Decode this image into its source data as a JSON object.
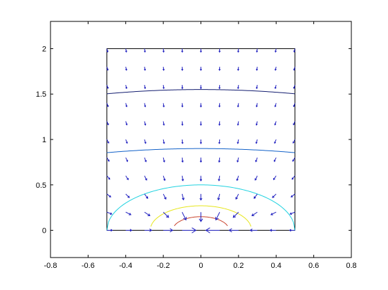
{
  "chart_data": {
    "type": "contour-quiver",
    "title": "",
    "xlabel": "",
    "ylabel": "",
    "xlim": [
      -0.8,
      0.8
    ],
    "ylim": [
      -0.3,
      2.3
    ],
    "xticks": [
      -0.8,
      -0.6,
      -0.4,
      -0.2,
      0,
      0.2,
      0.4,
      0.6,
      0.8
    ],
    "yticks": [
      0,
      0.5,
      1,
      1.5,
      2
    ],
    "xtick_labels": [
      "-0.8",
      "-0.6",
      "-0.4",
      "-0.2",
      "0",
      "0.2",
      "0.4",
      "0.6",
      "0.8"
    ],
    "ytick_labels": [
      "0",
      "0.5",
      "1",
      "1.5",
      "2"
    ],
    "grid": false,
    "box_region": {
      "x": [
        -0.5,
        0.5
      ],
      "y": [
        0,
        2
      ]
    },
    "quiver": {
      "x_range": [
        -0.5,
        0.5
      ],
      "y_range": [
        0,
        2
      ],
      "nx": 11,
      "ny": 11,
      "color": "#1f1fbf",
      "field": "radially inward toward origin, decaying with distance"
    },
    "contours": [
      {
        "radius_at_x0": 0.15,
        "colors": [
          "#c8402a"
        ]
      },
      {
        "radius_at_x0": 0.27,
        "colors": [
          "#e6e61a"
        ]
      },
      {
        "radius_at_x0": 0.5,
        "colors": [
          "#1fd2e0"
        ]
      },
      {
        "radius_at_x0": 0.9,
        "colors": [
          "#1060c8"
        ]
      },
      {
        "radius_at_x0": 1.55,
        "colors": [
          "#101a6e"
        ]
      }
    ]
  }
}
